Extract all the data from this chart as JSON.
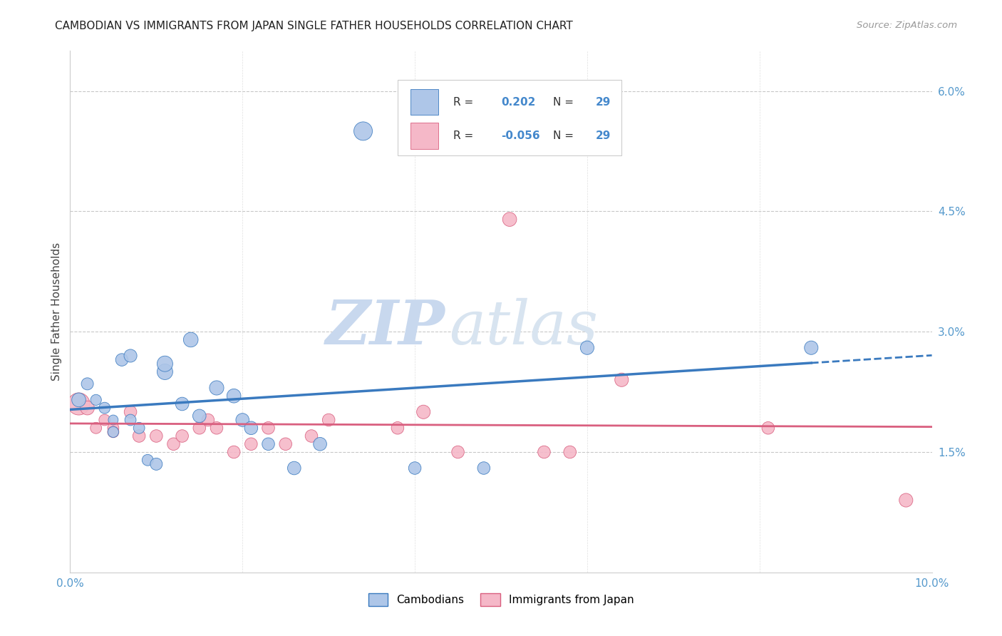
{
  "title": "CAMBODIAN VS IMMIGRANTS FROM JAPAN SINGLE FATHER HOUSEHOLDS CORRELATION CHART",
  "source": "Source: ZipAtlas.com",
  "ylabel": "Single Father Households",
  "xlim": [
    0.0,
    0.1
  ],
  "ylim": [
    0.0,
    0.065
  ],
  "yticks": [
    0.015,
    0.03,
    0.045,
    0.06
  ],
  "ytick_labels": [
    "1.5%",
    "3.0%",
    "4.5%",
    "6.0%"
  ],
  "xticks": [
    0.0,
    0.02,
    0.04,
    0.06,
    0.08,
    0.1
  ],
  "xtick_labels": [
    "0.0%",
    "",
    "",
    "",
    "",
    "10.0%"
  ],
  "legend_label1": "Cambodians",
  "legend_label2": "Immigrants from Japan",
  "blue_color": "#aec6e8",
  "pink_color": "#f5b8c8",
  "blue_line_color": "#3a7abf",
  "pink_line_color": "#d95f7f",
  "blue_scatter": [
    [
      0.001,
      0.0215
    ],
    [
      0.002,
      0.0235
    ],
    [
      0.003,
      0.0215
    ],
    [
      0.004,
      0.0205
    ],
    [
      0.005,
      0.019
    ],
    [
      0.005,
      0.0175
    ],
    [
      0.006,
      0.0265
    ],
    [
      0.007,
      0.027
    ],
    [
      0.007,
      0.019
    ],
    [
      0.008,
      0.018
    ],
    [
      0.009,
      0.014
    ],
    [
      0.01,
      0.0135
    ],
    [
      0.011,
      0.025
    ],
    [
      0.011,
      0.026
    ],
    [
      0.013,
      0.021
    ],
    [
      0.014,
      0.029
    ],
    [
      0.015,
      0.0195
    ],
    [
      0.017,
      0.023
    ],
    [
      0.019,
      0.022
    ],
    [
      0.02,
      0.019
    ],
    [
      0.021,
      0.018
    ],
    [
      0.023,
      0.016
    ],
    [
      0.026,
      0.013
    ],
    [
      0.029,
      0.016
    ],
    [
      0.034,
      0.055
    ],
    [
      0.04,
      0.013
    ],
    [
      0.048,
      0.013
    ],
    [
      0.06,
      0.028
    ],
    [
      0.086,
      0.028
    ]
  ],
  "pink_scatter": [
    [
      0.001,
      0.021
    ],
    [
      0.002,
      0.0205
    ],
    [
      0.003,
      0.018
    ],
    [
      0.004,
      0.019
    ],
    [
      0.005,
      0.018
    ],
    [
      0.005,
      0.0175
    ],
    [
      0.007,
      0.02
    ],
    [
      0.008,
      0.017
    ],
    [
      0.01,
      0.017
    ],
    [
      0.012,
      0.016
    ],
    [
      0.013,
      0.017
    ],
    [
      0.015,
      0.018
    ],
    [
      0.016,
      0.019
    ],
    [
      0.017,
      0.018
    ],
    [
      0.019,
      0.015
    ],
    [
      0.021,
      0.016
    ],
    [
      0.023,
      0.018
    ],
    [
      0.025,
      0.016
    ],
    [
      0.028,
      0.017
    ],
    [
      0.03,
      0.019
    ],
    [
      0.038,
      0.018
    ],
    [
      0.041,
      0.02
    ],
    [
      0.045,
      0.015
    ],
    [
      0.051,
      0.044
    ],
    [
      0.055,
      0.015
    ],
    [
      0.058,
      0.015
    ],
    [
      0.064,
      0.024
    ],
    [
      0.081,
      0.018
    ],
    [
      0.097,
      0.009
    ]
  ],
  "blue_sizes": [
    200,
    150,
    120,
    130,
    100,
    120,
    160,
    170,
    130,
    130,
    130,
    150,
    250,
    250,
    180,
    220,
    180,
    210,
    200,
    180,
    180,
    160,
    180,
    180,
    350,
    160,
    160,
    190,
    190
  ],
  "pink_sizes": [
    500,
    200,
    130,
    130,
    130,
    130,
    160,
    160,
    160,
    160,
    160,
    160,
    160,
    160,
    160,
    160,
    160,
    160,
    160,
    160,
    160,
    190,
    160,
    200,
    160,
    160,
    190,
    160,
    190
  ]
}
